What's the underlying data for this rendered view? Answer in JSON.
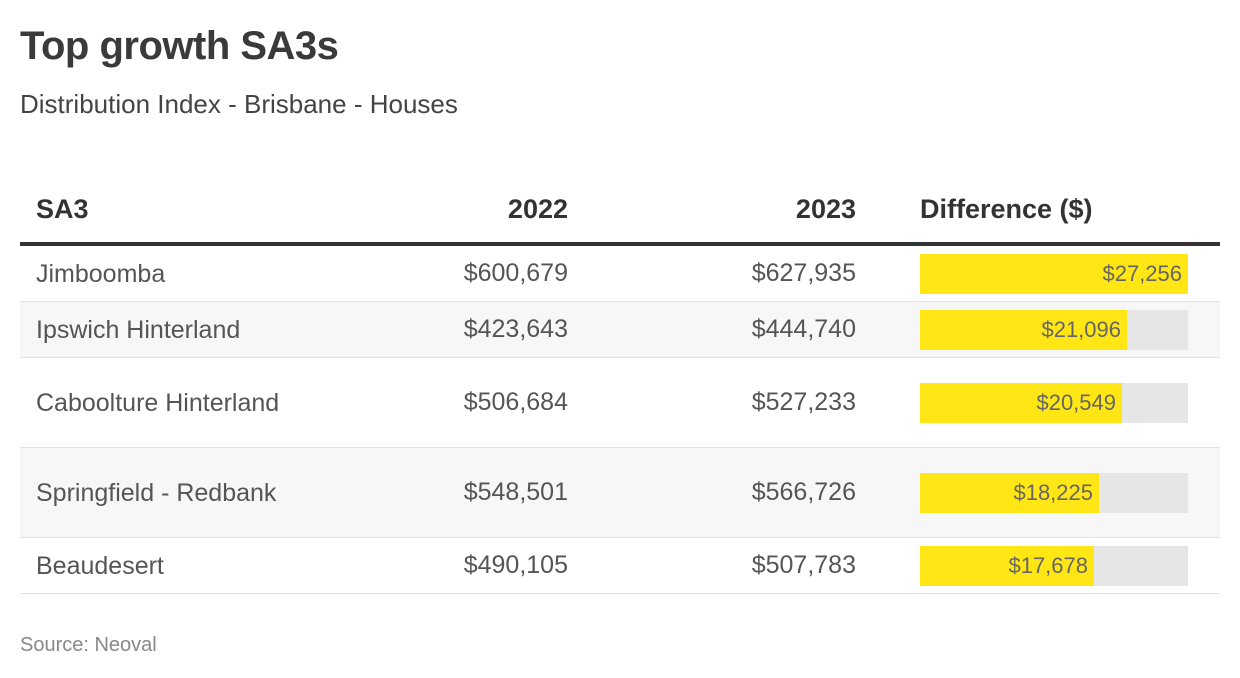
{
  "title": "Top growth SA3s",
  "subtitle": "Distribution Index - Brisbane - Houses",
  "source": "Source: Neoval",
  "colors": {
    "bar": "#ffe614",
    "track": "#e6e6e6",
    "header_rule": "#333333"
  },
  "chart_data": {
    "type": "table",
    "title": "Top growth SA3s",
    "subtitle": "Distribution Index - Brisbane - Houses",
    "columns": [
      "SA3",
      "2022",
      "2023",
      "Difference ($)"
    ],
    "bar_max": 27256,
    "rows": [
      {
        "sa3": "Jimboomba",
        "y2022": "$600,679",
        "y2023": "$627,935",
        "diff": 27256,
        "diff_label": "$27,256"
      },
      {
        "sa3": "Ipswich Hinterland",
        "y2022": "$423,643",
        "y2023": "$444,740",
        "diff": 21096,
        "diff_label": "$21,096"
      },
      {
        "sa3": "Caboolture Hinterland",
        "y2022": "$506,684",
        "y2023": "$527,233",
        "diff": 20549,
        "diff_label": "$20,549"
      },
      {
        "sa3": "Springfield - Redbank",
        "y2022": "$548,501",
        "y2023": "$566,726",
        "diff": 18225,
        "diff_label": "$18,225"
      },
      {
        "sa3": "Beaudesert",
        "y2022": "$490,105",
        "y2023": "$507,783",
        "diff": 17678,
        "diff_label": "$17,678"
      }
    ]
  }
}
